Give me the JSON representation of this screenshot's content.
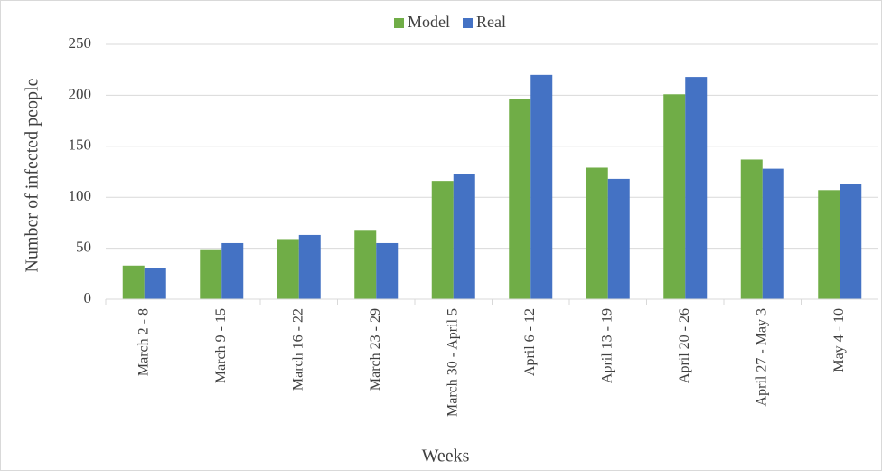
{
  "chart_data": {
    "type": "bar",
    "categories": [
      "March 2 - 8",
      "March 9 - 15",
      "March 16 - 22",
      "March 23 - 29",
      "March 30 - April 5",
      "April 6 - 12",
      "April 13 - 19",
      "April 20 - 26",
      "April 27 - May 3",
      "May 4 - 10"
    ],
    "series": [
      {
        "name": "Model",
        "color": "#70ad47",
        "values": [
          33,
          49,
          59,
          68,
          116,
          196,
          129,
          201,
          137,
          107
        ]
      },
      {
        "name": "Real",
        "color": "#4472c4",
        "values": [
          31,
          55,
          63,
          55,
          123,
          220,
          118,
          218,
          128,
          113
        ]
      }
    ],
    "xlabel": "Weeks",
    "ylabel": "Number of infected people",
    "ylim": [
      0,
      250
    ],
    "yticks": [
      0,
      50,
      100,
      150,
      200,
      250
    ],
    "grid": true,
    "legend": "top"
  }
}
